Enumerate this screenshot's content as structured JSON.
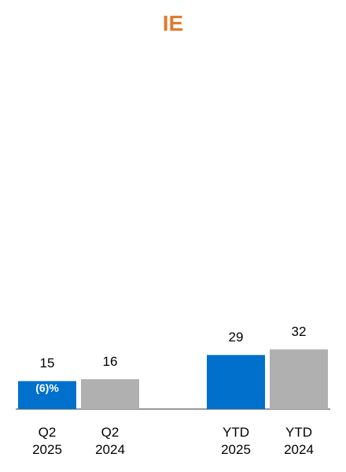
{
  "chart_data": {
    "type": "bar",
    "title": "IE",
    "categories": [
      "Q2 2025",
      "Q2 2024",
      null,
      "YTD 2025",
      "YTD 2024"
    ],
    "values": [
      15,
      16,
      null,
      29,
      32
    ],
    "colors": [
      "#0070cd",
      "#b0b0b0",
      null,
      "#0070cd",
      "#b0b0b0"
    ],
    "annotation": "(6)%"
  }
}
